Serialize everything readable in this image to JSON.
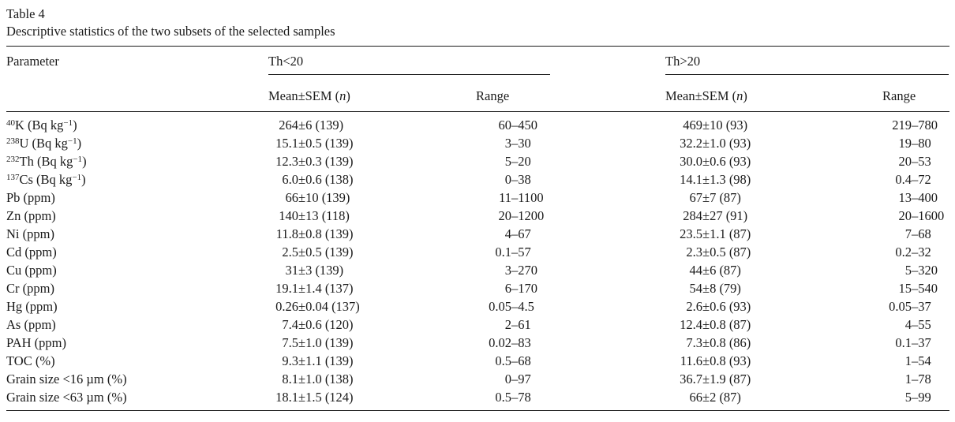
{
  "table": {
    "title": "Table 4",
    "caption": "Descriptive statistics of the two subsets of the selected samples",
    "param_header": "Parameter",
    "groups": [
      {
        "label": "Th<20",
        "mean_header": "Mean±SEM (*n*)",
        "range_header": "Range"
      },
      {
        "label": "Th>20",
        "mean_header": "Mean±SEM (*n*)",
        "range_header": "Range"
      }
    ],
    "rows": [
      {
        "parameter": "^{40}K (Bq kg^{−1})",
        "g1_mean_sem": "264±6 (139)",
        "g1_range": "60–450",
        "g2_mean_sem": "469±10 (93)",
        "g2_range": "219–780"
      },
      {
        "parameter": "^{238}U (Bq kg^{−1})",
        "g1_mean_sem": "15.1±0.5 (139)",
        "g1_range": "3–30",
        "g2_mean_sem": "32.2±1.0 (93)",
        "g2_range": "19–80"
      },
      {
        "parameter": "^{232}Th (Bq kg^{−1})",
        "g1_mean_sem": "12.3±0.3 (139)",
        "g1_range": "5–20",
        "g2_mean_sem": "30.0±0.6 (93)",
        "g2_range": "20–53"
      },
      {
        "parameter": "^{137}Cs (Bq kg^{−1})",
        "g1_mean_sem": "6.0±0.6 (138)",
        "g1_range": "0–38",
        "g2_mean_sem": "14.1±1.3 (98)",
        "g2_range": "0.4–72"
      },
      {
        "parameter": "Pb (ppm)",
        "g1_mean_sem": "66±10 (139)",
        "g1_range": "11–1100",
        "g2_mean_sem": "67±7 (87)",
        "g2_range": "13–400"
      },
      {
        "parameter": "Zn (ppm)",
        "g1_mean_sem": "140±13 (118)",
        "g1_range": "20–1200",
        "g2_mean_sem": "284±27 (91)",
        "g2_range": "20–1600"
      },
      {
        "parameter": "Ni (ppm)",
        "g1_mean_sem": "11.8±0.8 (139)",
        "g1_range": "4–67",
        "g2_mean_sem": "23.5±1.1 (87)",
        "g2_range": "7–68"
      },
      {
        "parameter": "Cd (ppm)",
        "g1_mean_sem": "2.5±0.5 (139)",
        "g1_range": "0.1–57",
        "g2_mean_sem": "2.3±0.5 (87)",
        "g2_range": "0.2–32"
      },
      {
        "parameter": "Cu (ppm)",
        "g1_mean_sem": "31±3 (139)",
        "g1_range": "3–270",
        "g2_mean_sem": "44±6 (87)",
        "g2_range": "5–320"
      },
      {
        "parameter": "Cr (ppm)",
        "g1_mean_sem": "19.1±1.4 (137)",
        "g1_range": "6–170",
        "g2_mean_sem": "54±8 (79)",
        "g2_range": "15–540"
      },
      {
        "parameter": "Hg (ppm)",
        "g1_mean_sem": "0.26±0.04 (137)",
        "g1_range": "0.05–4.5",
        "g2_mean_sem": "2.6±0.6 (93)",
        "g2_range": "0.05–37"
      },
      {
        "parameter": "As (ppm)",
        "g1_mean_sem": "7.4±0.6 (120)",
        "g1_range": "2–61",
        "g2_mean_sem": "12.4±0.8 (87)",
        "g2_range": "4–55"
      },
      {
        "parameter": "PAH (ppm)",
        "g1_mean_sem": "7.5±1.0 (139)",
        "g1_range": "0.02–83",
        "g2_mean_sem": "7.3±0.8 (86)",
        "g2_range": "0.1–37"
      },
      {
        "parameter": "TOC (%)",
        "g1_mean_sem": "9.3±1.1 (139)",
        "g1_range": "0.5–68",
        "g2_mean_sem": "11.6±0.8 (93)",
        "g2_range": "1–54"
      },
      {
        "parameter": "Grain size <16 µm (%)",
        "g1_mean_sem": "8.1±1.0 (138)",
        "g1_range": "0–97",
        "g2_mean_sem": "36.7±1.9 (87)",
        "g2_range": "1–78"
      },
      {
        "parameter": "Grain size <63 µm (%)",
        "g1_mean_sem": "18.1±1.5 (124)",
        "g1_range": "0.5–78",
        "g2_mean_sem": "66±2 (87)",
        "g2_range": "5–99"
      }
    ]
  }
}
